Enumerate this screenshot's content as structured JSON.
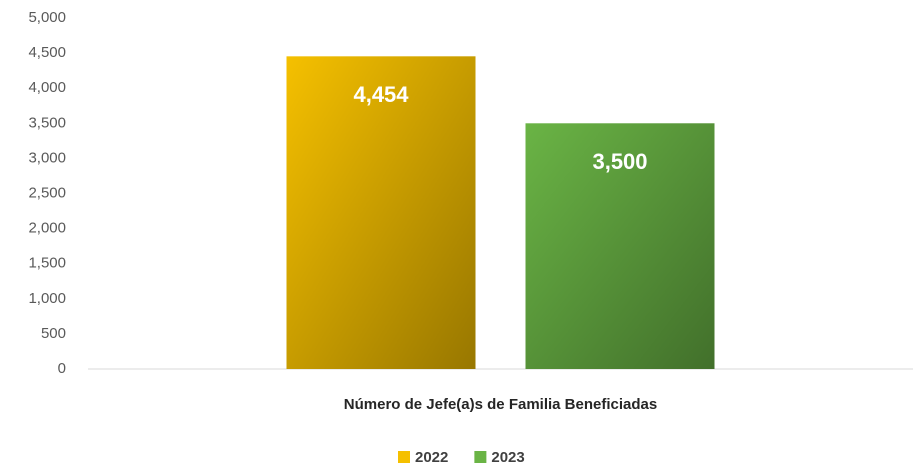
{
  "chart_data": {
    "type": "bar",
    "categories": [
      "Número de Jefe(a)s de Familia Beneficiadas"
    ],
    "series": [
      {
        "name": "2022",
        "color": "#f5c000",
        "values": [
          4454
        ],
        "value_labels": [
          "4,454"
        ]
      },
      {
        "name": "2023",
        "color": "#6ab445",
        "values": [
          3500
        ],
        "value_labels": [
          "3,500"
        ]
      }
    ],
    "ylim": [
      0,
      5000
    ],
    "yticks": [
      0,
      500,
      {
        "value": 1000,
        "label": "1,000"
      },
      {
        "value": 1500,
        "label": "1,500"
      },
      {
        "value": 2000,
        "label": "2,000"
      },
      {
        "value": 2500,
        "label": "2,500"
      },
      {
        "value": 3000,
        "label": "3,000"
      },
      {
        "value": 3500,
        "label": "3,500"
      },
      {
        "value": 4000,
        "label": "4,000"
      },
      {
        "value": 4500,
        "label": "4,500"
      },
      {
        "value": 5000,
        "label": "5,000"
      }
    ],
    "grid": false,
    "legend": "bottom"
  }
}
